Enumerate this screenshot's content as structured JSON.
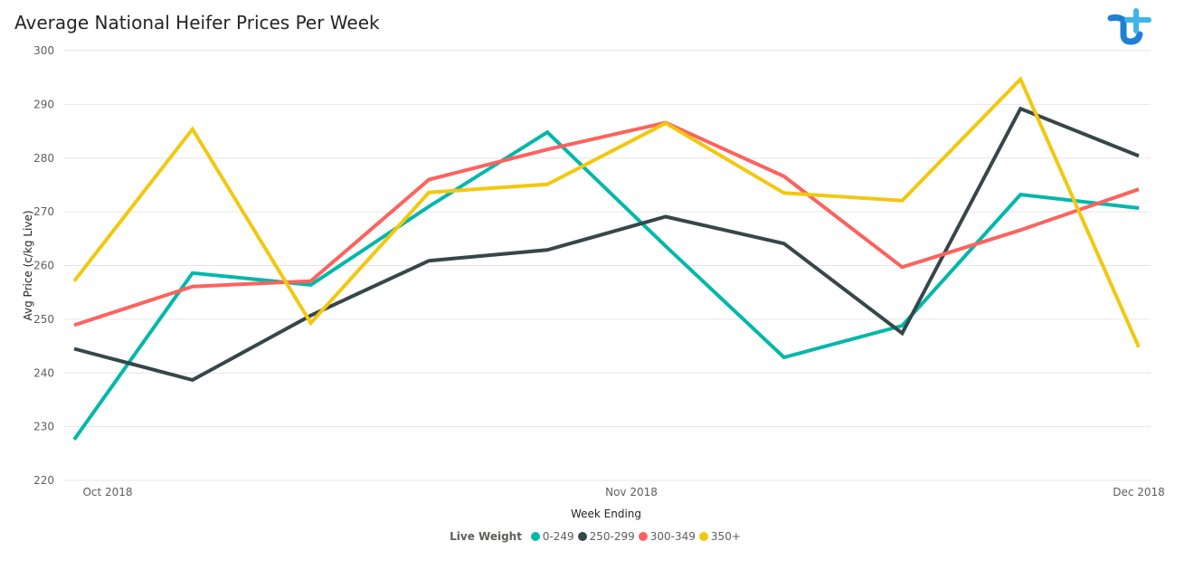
{
  "title": "Average National Heifer Prices Per Week",
  "logo_name": "tt-brand-logo",
  "legend": {
    "title": "Live Weight"
  },
  "chart_data": {
    "type": "line",
    "title": "Average National Heifer Prices Per Week",
    "xlabel": "Week Ending",
    "ylabel": "Avg Price (c/kg Live)",
    "x_tick_labels": [
      "Oct 2018",
      "Nov 2018",
      "Dec 2018"
    ],
    "y_ticks": [
      220,
      230,
      240,
      250,
      260,
      270,
      280,
      290,
      300
    ],
    "ylim": [
      220,
      300
    ],
    "point_count": 10,
    "grid": true,
    "legend_position": "bottom-center",
    "series": [
      {
        "name": "0-249",
        "color": "#01B8AA",
        "values": [
          227.6,
          258.6,
          256.4,
          271.0,
          284.8,
          263.6,
          242.9,
          248.8,
          273.2,
          270.7
        ]
      },
      {
        "name": "250-299",
        "color": "#374649",
        "values": [
          244.5,
          238.7,
          250.7,
          260.9,
          262.9,
          269.1,
          264.1,
          247.4,
          289.2,
          280.4
        ]
      },
      {
        "name": "300-349",
        "color": "#FD625E",
        "values": [
          248.9,
          256.1,
          257.1,
          276.0,
          281.6,
          286.6,
          276.6,
          259.7,
          266.6,
          274.2
        ]
      },
      {
        "name": "350+",
        "color": "#F2C80F",
        "values": [
          257.1,
          285.4,
          249.3,
          273.6,
          275.1,
          286.5,
          273.5,
          272.1,
          294.7,
          244.8
        ]
      }
    ]
  }
}
